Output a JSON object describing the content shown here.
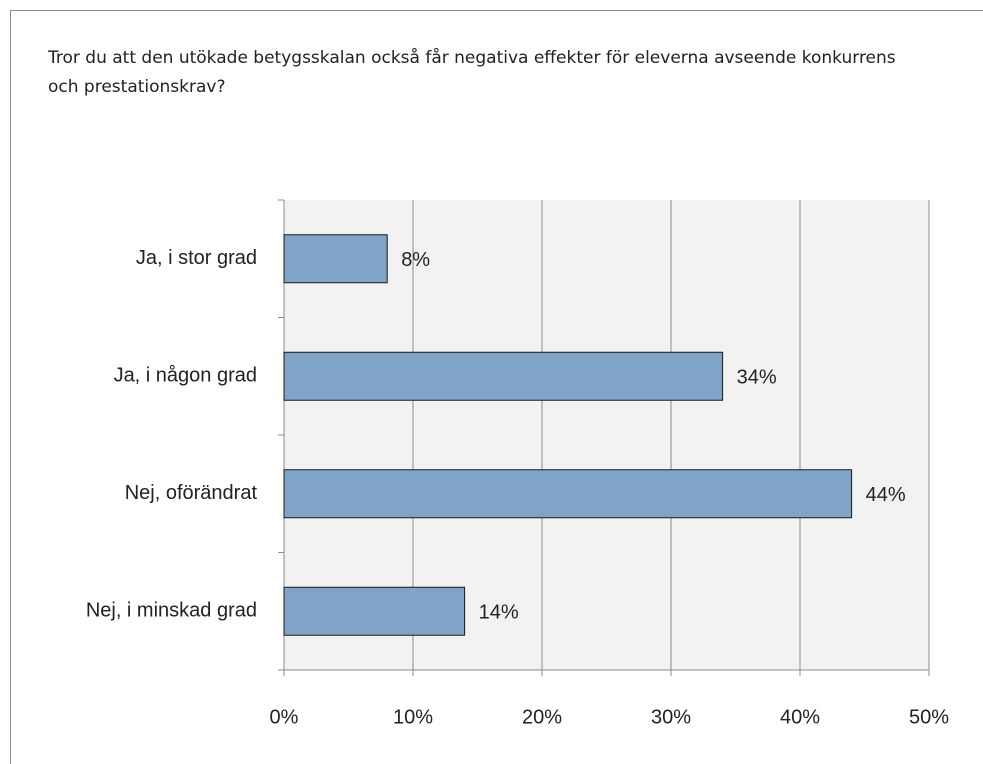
{
  "chart_data": {
    "type": "barh",
    "title": "Tror du att den utökade betygsskalan också får negativa effekter för eleverna avseende konkurrens och prestationskrav?",
    "categories": [
      "Ja, i stor grad",
      "Ja, i någon grad",
      "Nej, oförändrat",
      "Nej, i minskad grad"
    ],
    "values": [
      8,
      34,
      44,
      14
    ],
    "value_labels": [
      "8%",
      "34%",
      "44%",
      "14%"
    ],
    "color": "#7fa4c8",
    "xlim": [
      0,
      50
    ],
    "xticks": [
      {
        "value": 0,
        "label": "0%"
      },
      {
        "value": 10,
        "label": "10%"
      },
      {
        "value": 20,
        "label": "20%"
      },
      {
        "value": 30,
        "label": "30%"
      },
      {
        "value": 40,
        "label": "40%"
      },
      {
        "value": 50,
        "label": "50%"
      }
    ],
    "grid": true
  }
}
